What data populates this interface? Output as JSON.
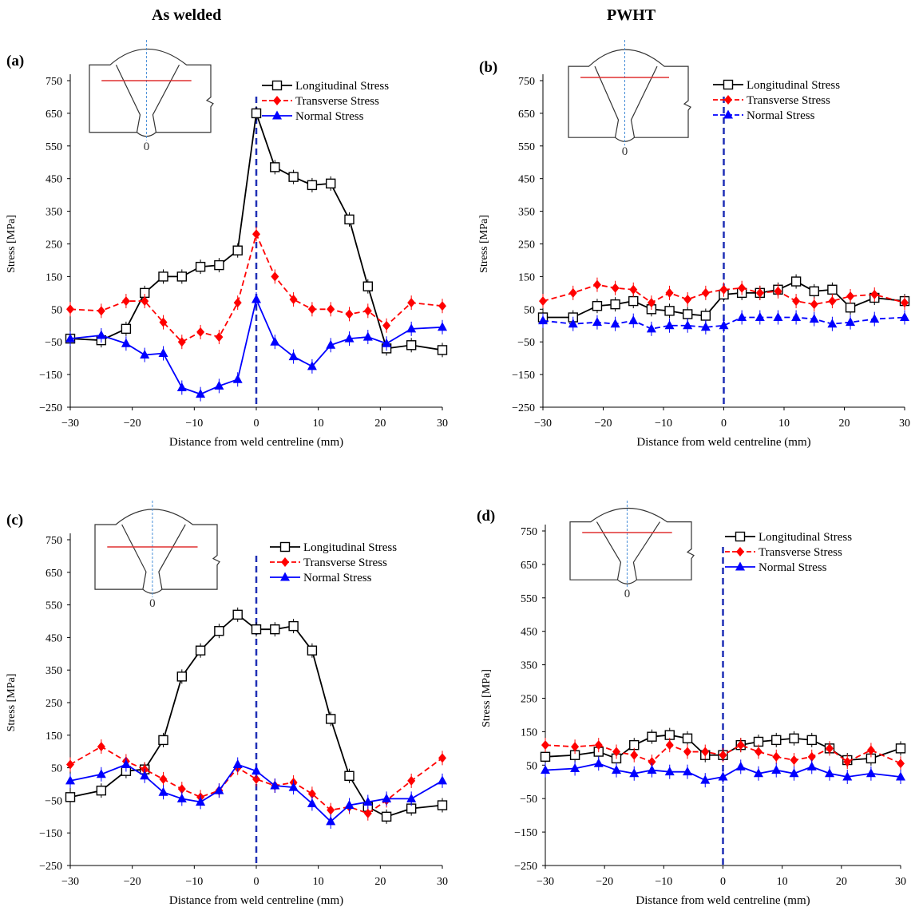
{
  "column_titles": {
    "left": "As welded",
    "right": "PWHT"
  },
  "chart_data": [
    {
      "type": "line",
      "panel_label": "(a)",
      "ylabel": "Stress [MPa]",
      "xlabel": "Distance from weld centreline (mm)",
      "xlim": [
        -30,
        30
      ],
      "ylim": [
        -250,
        750
      ],
      "yticks": [
        750,
        650,
        550,
        450,
        350,
        250,
        150,
        50,
        -50,
        -150,
        -250
      ],
      "xticks": [
        -30,
        -20,
        -10,
        0,
        10,
        20,
        30
      ],
      "xtick_labels": [
        "−30",
        "−20",
        "−10",
        "0",
        "10",
        "20",
        "30"
      ],
      "inset_label": "0",
      "centreline_x": 0,
      "legend": [
        "Longitudinal Stress",
        "Transverse Stress",
        "Normal Stress"
      ],
      "series": [
        {
          "name": "Longitudinal Stress",
          "color": "#000000",
          "marker": "square",
          "dashed": false,
          "x": [
            -30,
            -25,
            -21,
            -18,
            -15,
            -12,
            -9,
            -6,
            -3,
            0,
            3,
            6,
            9,
            12,
            15,
            18,
            21,
            25,
            30
          ],
          "y": [
            -40,
            -45,
            -10,
            100,
            150,
            150,
            180,
            185,
            230,
            650,
            485,
            455,
            430,
            435,
            325,
            120,
            -70,
            -60,
            -75
          ]
        },
        {
          "name": "Transverse Stress",
          "color": "#ff0000",
          "marker": "diamond",
          "dashed": true,
          "x": [
            -30,
            -25,
            -21,
            -18,
            -15,
            -12,
            -9,
            -6,
            -3,
            0,
            3,
            6,
            9,
            12,
            15,
            18,
            21,
            25,
            30
          ],
          "y": [
            50,
            45,
            75,
            75,
            10,
            -50,
            -20,
            -35,
            70,
            280,
            150,
            80,
            50,
            50,
            35,
            45,
            0,
            70,
            60
          ]
        },
        {
          "name": "Normal Stress",
          "color": "#0000ff",
          "marker": "triangle",
          "dashed": false,
          "x": [
            -30,
            -25,
            -21,
            -18,
            -15,
            -12,
            -9,
            -6,
            -3,
            0,
            3,
            6,
            9,
            12,
            15,
            18,
            21,
            25,
            30
          ],
          "y": [
            -40,
            -30,
            -55,
            -90,
            -85,
            -190,
            -210,
            -185,
            -165,
            80,
            -50,
            -95,
            -125,
            -60,
            -40,
            -35,
            -55,
            -10,
            -5
          ]
        }
      ]
    },
    {
      "type": "line",
      "panel_label": "(b)",
      "ylabel": "Stress [MPa]",
      "xlabel": "Distance from weld centreline (mm)",
      "xlim": [
        -30,
        30
      ],
      "ylim": [
        -250,
        750
      ],
      "yticks": [
        750,
        650,
        550,
        450,
        350,
        250,
        150,
        50,
        -50,
        -150,
        -250
      ],
      "xticks": [
        -30,
        -20,
        -10,
        0,
        10,
        20,
        30
      ],
      "xtick_labels": [
        "−30",
        "−20",
        "−10",
        "0",
        "10",
        "20",
        "30"
      ],
      "inset_label": "0",
      "centreline_x": 0,
      "legend": [
        "Longitudinal Stress",
        "Transverse Stress",
        "Normal Stress"
      ],
      "series": [
        {
          "name": "Longitudinal Stress",
          "color": "#000000",
          "marker": "square",
          "dashed": false,
          "x": [
            -30,
            -25,
            -21,
            -18,
            -15,
            -12,
            -9,
            -6,
            -3,
            0,
            3,
            6,
            9,
            12,
            15,
            18,
            21,
            25,
            30
          ],
          "y": [
            25,
            25,
            60,
            65,
            75,
            50,
            45,
            35,
            30,
            95,
            100,
            100,
            110,
            135,
            105,
            110,
            55,
            85,
            75
          ]
        },
        {
          "name": "Transverse Stress",
          "color": "#ff0000",
          "marker": "diamond",
          "dashed": true,
          "x": [
            -30,
            -25,
            -21,
            -18,
            -15,
            -12,
            -9,
            -6,
            -3,
            0,
            3,
            6,
            9,
            12,
            15,
            18,
            21,
            25,
            30
          ],
          "y": [
            75,
            100,
            125,
            115,
            110,
            70,
            100,
            80,
            100,
            110,
            115,
            100,
            105,
            75,
            65,
            75,
            90,
            95,
            70
          ]
        },
        {
          "name": "Normal Stress",
          "color": "#0000ff",
          "marker": "triangle",
          "dashed": true,
          "x": [
            -30,
            -25,
            -21,
            -18,
            -15,
            -12,
            -9,
            -6,
            -3,
            0,
            3,
            6,
            9,
            12,
            15,
            18,
            21,
            25,
            30
          ],
          "y": [
            15,
            5,
            10,
            5,
            15,
            -10,
            0,
            0,
            -5,
            0,
            25,
            25,
            25,
            25,
            20,
            5,
            10,
            20,
            25
          ]
        }
      ]
    },
    {
      "type": "line",
      "panel_label": "(c)",
      "ylabel": "Stress [MPa]",
      "xlabel": "Distance from weld centreline (mm)",
      "xlim": [
        -30,
        30
      ],
      "ylim": [
        -250,
        750
      ],
      "yticks": [
        750,
        650,
        550,
        450,
        350,
        250,
        150,
        50,
        -50,
        -150,
        -250
      ],
      "xticks": [
        -30,
        -20,
        -10,
        0,
        10,
        20,
        30
      ],
      "xtick_labels": [
        "−30",
        "−20",
        "−10",
        "0",
        "10",
        "20",
        "30"
      ],
      "inset_label": "0",
      "centreline_x": 0,
      "legend": [
        "Longitudinal Stress",
        "Transverse Stress",
        "Normal Stress"
      ],
      "series": [
        {
          "name": "Longitudinal Stress",
          "color": "#000000",
          "marker": "square",
          "dashed": false,
          "x": [
            -30,
            -25,
            -21,
            -18,
            -15,
            -12,
            -9,
            -6,
            -3,
            0,
            3,
            6,
            9,
            12,
            15,
            18,
            21,
            25,
            30
          ],
          "y": [
            -40,
            -20,
            40,
            45,
            135,
            330,
            410,
            470,
            520,
            475,
            475,
            485,
            410,
            200,
            25,
            -70,
            -100,
            -75,
            -65
          ]
        },
        {
          "name": "Transverse Stress",
          "color": "#ff0000",
          "marker": "diamond",
          "dashed": true,
          "x": [
            -30,
            -25,
            -21,
            -18,
            -15,
            -12,
            -9,
            -6,
            -3,
            0,
            3,
            6,
            9,
            12,
            15,
            18,
            21,
            25,
            30
          ],
          "y": [
            60,
            115,
            70,
            45,
            15,
            -15,
            -40,
            -20,
            50,
            15,
            -5,
            5,
            -30,
            -80,
            -70,
            -90,
            -50,
            10,
            80
          ]
        },
        {
          "name": "Normal Stress",
          "color": "#0000ff",
          "marker": "triangle",
          "dashed": false,
          "x": [
            -30,
            -25,
            -21,
            -18,
            -15,
            -12,
            -9,
            -6,
            -3,
            0,
            3,
            6,
            9,
            12,
            15,
            18,
            21,
            25,
            30
          ],
          "y": [
            10,
            30,
            60,
            25,
            -25,
            -45,
            -55,
            -20,
            60,
            40,
            -5,
            -10,
            -60,
            -115,
            -65,
            -55,
            -45,
            -45,
            10
          ]
        }
      ]
    },
    {
      "type": "line",
      "panel_label": "(d)",
      "ylabel": "Stress [MPa]",
      "xlabel": "Distance from weld centreline (mm)",
      "xlim": [
        -30,
        30
      ],
      "ylim": [
        -250,
        750
      ],
      "yticks": [
        750,
        650,
        550,
        450,
        350,
        250,
        150,
        50,
        -50,
        -150,
        -250
      ],
      "xticks": [
        -30,
        -20,
        -10,
        0,
        10,
        20,
        30
      ],
      "xtick_labels": [
        "−30",
        "−20",
        "−10",
        "0",
        "10",
        "20",
        "30"
      ],
      "inset_label": "0",
      "centreline_x": 0,
      "legend": [
        "Longitudinal Stress",
        "Transverse Stress",
        "Normal Stress"
      ],
      "series": [
        {
          "name": "Longitudinal Stress",
          "color": "#000000",
          "marker": "square",
          "dashed": false,
          "x": [
            -30,
            -25,
            -21,
            -18,
            -15,
            -12,
            -9,
            -6,
            -3,
            0,
            3,
            6,
            9,
            12,
            15,
            18,
            21,
            25,
            30
          ],
          "y": [
            75,
            80,
            90,
            70,
            110,
            135,
            140,
            130,
            80,
            80,
            110,
            120,
            125,
            130,
            125,
            100,
            65,
            70,
            100
          ]
        },
        {
          "name": "Transverse Stress",
          "color": "#ff0000",
          "marker": "diamond",
          "dashed": true,
          "x": [
            -30,
            -25,
            -21,
            -18,
            -15,
            -12,
            -9,
            -6,
            -3,
            0,
            3,
            6,
            9,
            12,
            15,
            18,
            21,
            25,
            30
          ],
          "y": [
            110,
            105,
            110,
            90,
            80,
            60,
            110,
            90,
            90,
            80,
            110,
            90,
            75,
            65,
            75,
            100,
            60,
            95,
            55
          ]
        },
        {
          "name": "Normal Stress",
          "color": "#0000ff",
          "marker": "triangle",
          "dashed": false,
          "x": [
            -30,
            -25,
            -21,
            -18,
            -15,
            -12,
            -9,
            -6,
            -3,
            0,
            3,
            6,
            9,
            12,
            15,
            18,
            21,
            25,
            30
          ],
          "y": [
            35,
            40,
            55,
            35,
            25,
            35,
            30,
            30,
            5,
            15,
            45,
            25,
            35,
            25,
            45,
            25,
            15,
            25,
            15
          ]
        }
      ]
    }
  ]
}
